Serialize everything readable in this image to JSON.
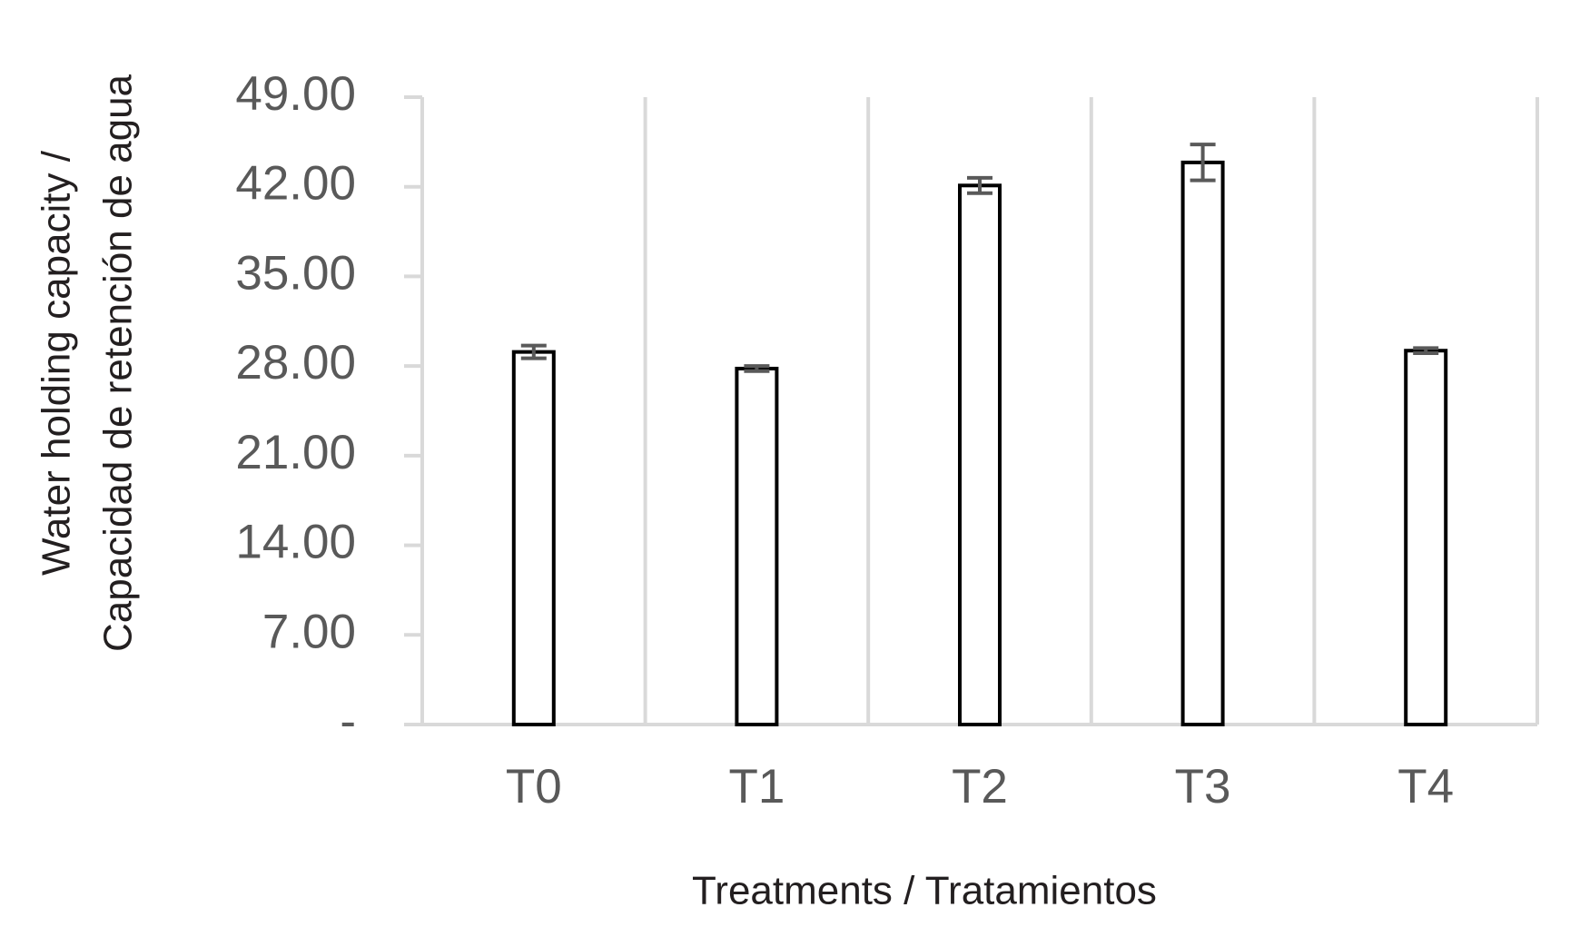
{
  "chart_data": {
    "type": "bar",
    "x_label": "Treatments / Tratamientos",
    "y_label": [
      "Water holding capacity /",
      "Capacidad de retención de agua"
    ],
    "categories": [
      "T0",
      "T1",
      "T2",
      "T3",
      "T4"
    ],
    "values": [
      29.1,
      27.8,
      42.1,
      43.9,
      29.2
    ],
    "errors": [
      0.5,
      0.2,
      0.6,
      1.4,
      0.2
    ],
    "color": "#ffffff",
    "ylim": [
      0,
      49
    ],
    "yticks": [
      {
        "value": 0,
        "label": "-"
      },
      {
        "value": 7,
        "label": "7.00"
      },
      {
        "value": 14,
        "label": "14.00"
      },
      {
        "value": 21,
        "label": "21.00"
      },
      {
        "value": 28,
        "label": "28.00"
      },
      {
        "value": 35,
        "label": "35.00"
      },
      {
        "value": 42,
        "label": "42.00"
      },
      {
        "value": 49,
        "label": "49.00"
      }
    ]
  }
}
